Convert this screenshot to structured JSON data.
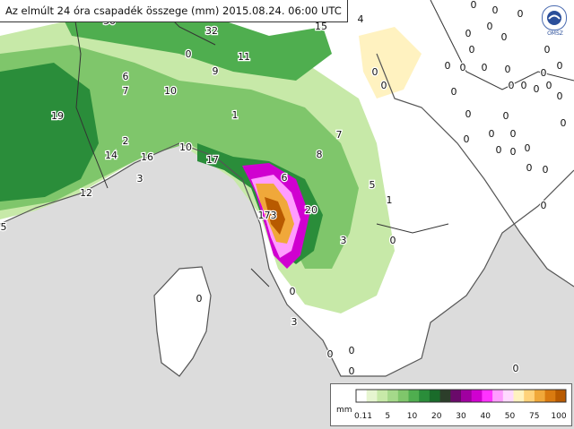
{
  "title": "Az elmúlt 24 óra csapadék összege (mm) 2015.08.24. 06:00 UTC",
  "logo_text": "OMSZ",
  "legend": {
    "unit": "mm",
    "ticks": [
      "0.11",
      "5",
      "10",
      "20",
      "30",
      "40",
      "50",
      "75",
      "100"
    ],
    "colors": [
      "#ffffff",
      "#e6f5d0",
      "#c7e9a8",
      "#a5d98a",
      "#7fc66b",
      "#4fae4f",
      "#2a8d3a",
      "#1a6b2a",
      "#2c3e2a",
      "#6a0a6a",
      "#a000a0",
      "#d000d0",
      "#ff33ff",
      "#ff9cff",
      "#ffd9ff",
      "#fff2c0",
      "#ffd27a",
      "#f0a83a",
      "#d97a10",
      "#b85a00"
    ]
  },
  "values": [
    {
      "text": "30"
    },
    {
      "text": "32"
    },
    {
      "text": "15"
    },
    {
      "text": "4"
    },
    {
      "text": "0"
    },
    {
      "text": "11"
    },
    {
      "text": "9"
    },
    {
      "text": "6"
    },
    {
      "text": "7"
    },
    {
      "text": "10"
    },
    {
      "text": "19"
    },
    {
      "text": "1"
    },
    {
      "text": "2"
    },
    {
      "text": "14"
    },
    {
      "text": "16"
    },
    {
      "text": "10"
    },
    {
      "text": "17"
    },
    {
      "text": "7"
    },
    {
      "text": "8"
    },
    {
      "text": "3"
    },
    {
      "text": "12"
    },
    {
      "text": "6"
    },
    {
      "text": "173"
    },
    {
      "text": "20"
    },
    {
      "text": "5"
    },
    {
      "text": "1"
    },
    {
      "text": "3"
    },
    {
      "text": "0"
    },
    {
      "text": "5"
    },
    {
      "text": "0"
    },
    {
      "text": "0"
    },
    {
      "text": "3"
    },
    {
      "text": "0"
    },
    {
      "text": "0"
    },
    {
      "text": "0"
    },
    {
      "text": "0"
    },
    {
      "text": "0"
    },
    {
      "text": "0"
    },
    {
      "text": "0"
    },
    {
      "text": "0"
    },
    {
      "text": "0"
    },
    {
      "text": "0"
    },
    {
      "text": "0"
    },
    {
      "text": "0"
    },
    {
      "text": "0"
    },
    {
      "text": "0"
    },
    {
      "text": "0"
    },
    {
      "text": "0"
    },
    {
      "text": "0"
    },
    {
      "text": "0"
    },
    {
      "text": "0"
    },
    {
      "text": "0"
    },
    {
      "text": "0"
    },
    {
      "text": "0"
    },
    {
      "text": "0"
    },
    {
      "text": "0"
    },
    {
      "text": "0"
    },
    {
      "text": "0"
    },
    {
      "text": "0"
    },
    {
      "text": "0"
    },
    {
      "text": "0"
    },
    {
      "text": "0"
    },
    {
      "text": "0"
    },
    {
      "text": "0"
    },
    {
      "text": "0"
    },
    {
      "text": "0"
    },
    {
      "text": "0"
    },
    {
      "text": "0"
    },
    {
      "text": "0"
    },
    {
      "text": "0"
    }
  ]
}
